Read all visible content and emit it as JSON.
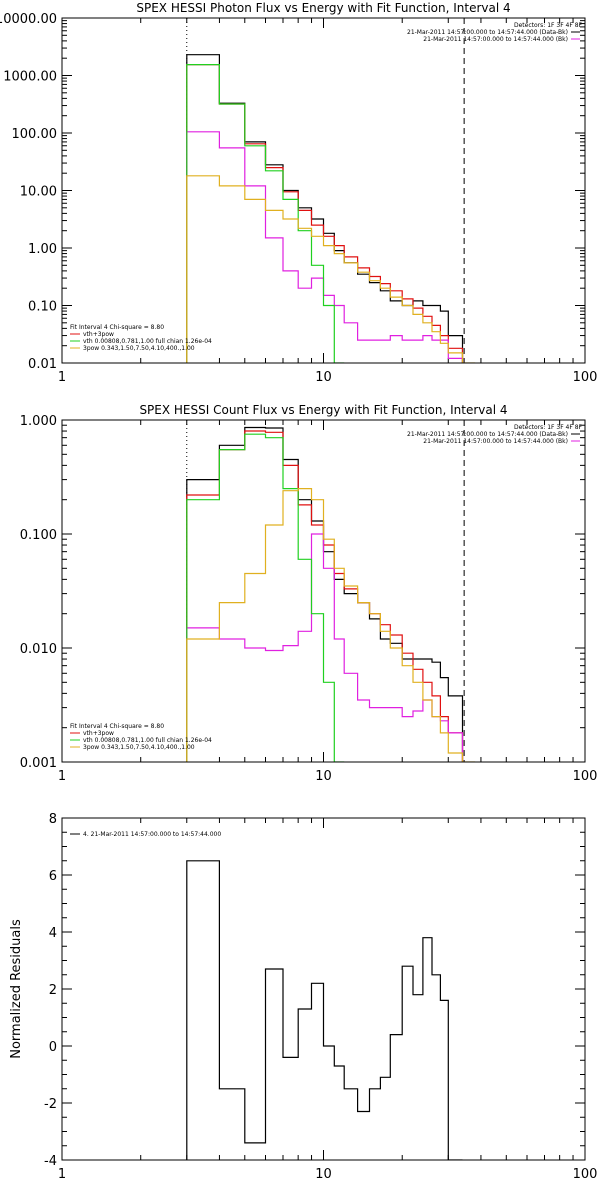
{
  "chart_data": [
    {
      "type": "line",
      "title": "SPEX HESSI Photon Flux vs Energy with Fit Function, Interval 4",
      "xscale": "log",
      "yscale": "log",
      "xlim": [
        1,
        100
      ],
      "ylim": [
        0.01,
        10000
      ],
      "xticks": [
        1,
        10,
        100
      ],
      "xtick_labels": [
        "1",
        "10",
        "100"
      ],
      "yticks": [
        0.01,
        0.1,
        1,
        10,
        100,
        1000,
        10000
      ],
      "ytick_labels": [
        "0.01",
        "0.10",
        "1.00",
        "10.00",
        "100.00",
        "1000.00",
        "10000.00"
      ],
      "ylabel": "",
      "vlines": [
        3.0,
        34.5
      ],
      "legend_top_right": [
        {
          "text": "Detectors: 1F 3F 4F 8F",
          "color": "#000000",
          "line": false
        },
        {
          "text": "21-Mar-2011 14:57:00.000 to 14:57:44.000 (Data-Bk)",
          "color": "#000000",
          "line": true
        },
        {
          "text": "21-Mar-2011 14:57:00.000 to 14:57:44.000 (Bk)",
          "color": "#e020e0",
          "line": true
        }
      ],
      "legend_bottom_left": [
        {
          "text": "Fit Interval  4    Chi-square = 8.80",
          "color": "#000000",
          "line": false
        },
        {
          "text": "vth+3pow",
          "color": "#e01010",
          "line": true
        },
        {
          "text": "vth 0.00808,0.781,1.00   full chian 1.26e-04",
          "color": "#20d020",
          "line": true
        },
        {
          "text": "3pow 0.343,1.50,7.50,4.10,400.,1.00",
          "color": "#e0b020",
          "line": true
        }
      ],
      "bin_edges": [
        3.0,
        4.0,
        5.0,
        6.0,
        7.0,
        8.0,
        9.0,
        10.0,
        11.0,
        12.0,
        13.5,
        15.0,
        16.5,
        18.0,
        20.0,
        22.0,
        24.0,
        26.0,
        28.0,
        30.0,
        34.0,
        38.0
      ],
      "series": [
        {
          "name": "21-Mar-2011 14:57:00.000 to 14:57:44.000 (Data-Bk)",
          "color": "#000000",
          "values": [
            2300,
            330,
            70,
            28,
            10,
            5,
            3.2,
            1.8,
            0.9,
            0.55,
            0.35,
            0.25,
            0.18,
            0.12,
            0.1,
            0.12,
            0.1,
            0.1,
            0.08,
            0.03,
            null
          ]
        },
        {
          "name": "vth+3pow",
          "color": "#e01010",
          "values": [
            1550,
            320,
            65,
            25,
            9.5,
            4.5,
            2.5,
            1.6,
            1.1,
            0.7,
            0.45,
            0.32,
            0.24,
            0.18,
            0.13,
            0.09,
            0.065,
            0.045,
            0.03,
            0.018,
            null
          ]
        },
        {
          "name": "21-Mar-2011 14:57:00.000 to 14:57:44.000 (Bk)",
          "color": "#e020e0",
          "values": [
            105,
            55,
            12,
            1.5,
            0.4,
            0.2,
            0.3,
            0.15,
            0.1,
            0.05,
            0.025,
            0.025,
            0.025,
            0.03,
            0.025,
            0.025,
            0.03,
            0.025,
            0.025,
            0.012,
            null
          ]
        },
        {
          "name": "vth 0.00808,0.781,1.00   full chian 1.26e-04",
          "color": "#20d020",
          "values": [
            1550,
            320,
            60,
            22,
            7,
            2,
            0.5,
            0.1,
            0.01,
            null,
            null,
            null,
            null,
            null,
            null,
            null,
            null,
            null,
            null,
            null,
            null
          ]
        },
        {
          "name": "3pow 0.343,1.50,7.50,4.10,400.,1.00",
          "color": "#e0b020",
          "values": [
            18,
            12,
            7,
            4.5,
            3.2,
            2.2,
            1.6,
            1.1,
            0.8,
            0.55,
            0.38,
            0.27,
            0.2,
            0.14,
            0.1,
            0.07,
            0.05,
            0.035,
            0.022,
            0.015,
            0.01
          ]
        }
      ]
    },
    {
      "type": "line",
      "title": "SPEX HESSI Count Flux vs Energy with Fit Function, Interval 4",
      "xscale": "log",
      "yscale": "log",
      "xlim": [
        1,
        100
      ],
      "ylim": [
        0.001,
        1.0
      ],
      "xticks": [
        1,
        10,
        100
      ],
      "xtick_labels": [
        "1",
        "10",
        "100"
      ],
      "yticks": [
        0.001,
        0.01,
        0.1,
        1.0
      ],
      "ytick_labels": [
        "0.001",
        "0.010",
        "0.100",
        "1.000"
      ],
      "ylabel": "",
      "vlines": [
        3.0,
        34.5
      ],
      "legend_top_right": [
        {
          "text": "Detectors: 1F 3F 4F 8F",
          "color": "#000000",
          "line": false
        },
        {
          "text": "21-Mar-2011 14:57:00.000 to 14:57:44.000 (Data-Bk)",
          "color": "#000000",
          "line": true
        },
        {
          "text": "21-Mar-2011 14:57:00.000 to 14:57:44.000 (Bk)",
          "color": "#e020e0",
          "line": true
        }
      ],
      "legend_bottom_left": [
        {
          "text": "Fit Interval  4    Chi-square = 8.80",
          "color": "#000000",
          "line": false
        },
        {
          "text": "vth+3pow",
          "color": "#e01010",
          "line": true
        },
        {
          "text": "vth 0.00808,0.781,1.00   full chian 1.26e-04",
          "color": "#20d020",
          "line": true
        },
        {
          "text": "3pow 0.343,1.50,7.50,4.10,400.,1.00",
          "color": "#e0b020",
          "line": true
        }
      ],
      "bin_edges": [
        3.0,
        4.0,
        5.0,
        6.0,
        7.0,
        8.0,
        9.0,
        10.0,
        11.0,
        12.0,
        13.5,
        15.0,
        16.5,
        18.0,
        20.0,
        22.0,
        24.0,
        26.0,
        28.0,
        30.0,
        34.0,
        38.0
      ],
      "series": [
        {
          "name": "21-Mar-2011 14:57:00.000 to 14:57:44.000 (Data-Bk)",
          "color": "#000000",
          "values": [
            0.3,
            0.6,
            0.86,
            0.85,
            0.45,
            0.2,
            0.13,
            0.07,
            0.04,
            0.03,
            0.025,
            0.018,
            0.012,
            0.011,
            0.008,
            0.008,
            0.008,
            0.0075,
            0.0055,
            0.0038,
            null
          ]
        },
        {
          "name": "vth+3pow",
          "color": "#e01010",
          "values": [
            0.22,
            0.55,
            0.8,
            0.78,
            0.4,
            0.18,
            0.12,
            0.08,
            0.045,
            0.033,
            0.025,
            0.02,
            0.016,
            0.013,
            0.009,
            0.0065,
            0.005,
            0.0038,
            0.0025,
            0.0018,
            null
          ]
        },
        {
          "name": "21-Mar-2011 14:57:00.000 to 14:57:44.000 (Bk)",
          "color": "#e020e0",
          "values": [
            0.015,
            0.012,
            0.01,
            0.0095,
            0.0105,
            0.014,
            0.1,
            0.05,
            0.012,
            0.006,
            0.0035,
            0.003,
            0.003,
            0.003,
            0.0025,
            0.0028,
            0.0035,
            0.0025,
            0.0023,
            0.0018,
            null
          ]
        },
        {
          "name": "vth 0.00808,0.781,1.00   full chian 1.26e-04",
          "color": "#20d020",
          "values": [
            0.2,
            0.55,
            0.75,
            0.7,
            0.25,
            0.06,
            0.02,
            0.005,
            0.001,
            null,
            null,
            null,
            null,
            null,
            null,
            null,
            null,
            null,
            null,
            null,
            null
          ]
        },
        {
          "name": "3pow 0.343,1.50,7.50,4.10,400.,1.00",
          "color": "#e0b020",
          "values": [
            0.012,
            0.025,
            0.045,
            0.12,
            0.24,
            0.25,
            0.2,
            0.09,
            0.05,
            0.035,
            0.025,
            0.02,
            0.014,
            0.01,
            0.007,
            0.005,
            0.0035,
            0.0025,
            0.0018,
            0.0012,
            0.001
          ]
        }
      ]
    },
    {
      "type": "line",
      "title": "",
      "xscale": "log",
      "yscale": "linear",
      "xlim": [
        1,
        100
      ],
      "ylim": [
        -4,
        8
      ],
      "xticks": [
        1,
        10,
        100
      ],
      "xtick_labels": [
        "1",
        "10",
        "100"
      ],
      "yticks": [
        -4,
        -2,
        0,
        2,
        4,
        6,
        8
      ],
      "ytick_labels": [
        "-4",
        "-2",
        "0",
        "2",
        "4",
        "6",
        "8"
      ],
      "ylabel": "Normalized Residuals",
      "vlines": [],
      "legend_top_left": [
        {
          "text": "4. 21-Mar-2011 14:57:00.000 to 14:57:44.000",
          "color": "#000000",
          "line": true
        }
      ],
      "bin_edges": [
        3.0,
        4.0,
        5.0,
        6.0,
        7.0,
        8.0,
        9.0,
        10.0,
        11.0,
        12.0,
        13.5,
        15.0,
        16.5,
        18.0,
        20.0,
        22.0,
        24.0,
        26.0,
        28.0,
        30.0,
        34.0
      ],
      "series": [
        {
          "name": "4. 21-Mar-2011 14:57:00.000 to 14:57:44.000",
          "color": "#000000",
          "values": [
            6.5,
            -1.5,
            -3.4,
            2.7,
            -0.4,
            1.3,
            2.2,
            0.0,
            -0.7,
            -1.5,
            -2.3,
            -1.5,
            -1.1,
            0.4,
            2.8,
            1.8,
            3.8,
            2.5,
            1.6,
            -4.0
          ],
          "closed_baseline": true
        }
      ]
    }
  ]
}
